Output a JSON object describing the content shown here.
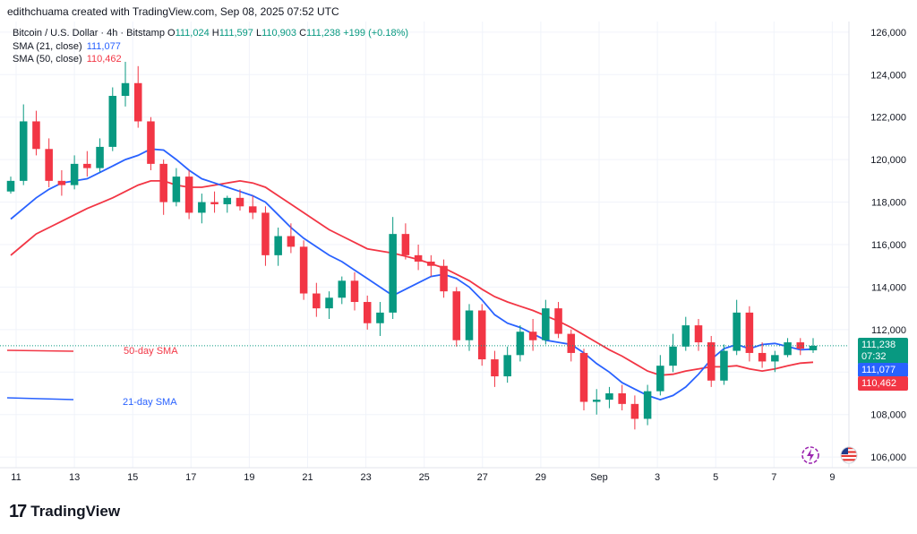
{
  "header": {
    "attribution": "edithchuama created with TradingView.com, Sep 08, 2025 07:52 UTC"
  },
  "legend": {
    "symbol": "Bitcoin / U.S. Dollar · 4h · Bitstamp",
    "o_label": "O",
    "o_value": "111,024",
    "h_label": "H",
    "h_value": "111,597",
    "l_label": "L",
    "l_value": "110,903",
    "c_label": "C",
    "c_value": "111,238",
    "change": "+199 (+0.18%)",
    "sma21_label": "SMA (21, close)",
    "sma21_value": "111,077",
    "sma50_label": "SMA (50, close)",
    "sma50_value": "110,462"
  },
  "price_tags": {
    "price": "111,238",
    "countdown": "07:32",
    "sma21": "111,077",
    "sma50": "110,462"
  },
  "branding": {
    "name": "TradingView",
    "mark": "17"
  },
  "colors": {
    "up": "#089981",
    "down": "#f23645",
    "sma21": "#2962ff",
    "sma50": "#f23645",
    "grid": "#f0f3fa",
    "text": "#131722"
  },
  "icons": [
    "lightning-icon",
    "us-flag-icon"
  ],
  "chart_data": {
    "type": "candlestick",
    "x_ticks": [
      "11",
      "13",
      "15",
      "17",
      "19",
      "21",
      "23",
      "25",
      "27",
      "29",
      "Sep",
      "3",
      "5",
      "7",
      "9"
    ],
    "y_ticks": [
      "126,000",
      "124,000",
      "122,000",
      "120,000",
      "118,000",
      "116,000",
      "114,000",
      "112,000",
      "110,000",
      "108,000",
      "106,000"
    ],
    "ylim": [
      105500,
      126500
    ],
    "annotations": [
      {
        "text": "50-day SMA",
        "color": "#f23645"
      },
      {
        "text": "21-day SMA",
        "color": "#2962ff"
      }
    ],
    "series": [
      {
        "name": "SMA (21, close)",
        "color": "#2962ff",
        "points": [
          [
            0,
            117200
          ],
          [
            1,
            117700
          ],
          [
            2,
            118200
          ],
          [
            3,
            118600
          ],
          [
            4,
            118900
          ],
          [
            5,
            119000
          ],
          [
            6,
            119100
          ],
          [
            7,
            119400
          ],
          [
            8,
            119700
          ],
          [
            9,
            120000
          ],
          [
            10,
            120200
          ],
          [
            11,
            120500
          ],
          [
            12,
            120450
          ],
          [
            13,
            120000
          ],
          [
            14,
            119500
          ],
          [
            15,
            119100
          ],
          [
            16,
            118900
          ],
          [
            17,
            118700
          ],
          [
            18,
            118500
          ],
          [
            19,
            118300
          ],
          [
            20,
            118000
          ],
          [
            21,
            117400
          ],
          [
            22,
            116800
          ],
          [
            23,
            116300
          ],
          [
            24,
            115900
          ],
          [
            25,
            115500
          ],
          [
            26,
            115200
          ],
          [
            27,
            114800
          ],
          [
            28,
            114400
          ],
          [
            29,
            114000
          ],
          [
            30,
            113600
          ],
          [
            31,
            113900
          ],
          [
            32,
            114200
          ],
          [
            33,
            114500
          ],
          [
            34,
            114600
          ],
          [
            35,
            114400
          ],
          [
            36,
            114000
          ],
          [
            37,
            113400
          ],
          [
            38,
            112700
          ],
          [
            39,
            112300
          ],
          [
            40,
            112100
          ],
          [
            41,
            111800
          ],
          [
            42,
            111500
          ],
          [
            43,
            111400
          ],
          [
            44,
            111300
          ],
          [
            45,
            110900
          ],
          [
            46,
            110400
          ],
          [
            47,
            110000
          ],
          [
            48,
            109500
          ],
          [
            49,
            109200
          ],
          [
            50,
            108900
          ],
          [
            51,
            108700
          ],
          [
            52,
            108900
          ],
          [
            53,
            109300
          ],
          [
            54,
            109900
          ],
          [
            55,
            110600
          ],
          [
            56,
            111100
          ],
          [
            57,
            111300
          ],
          [
            58,
            111100
          ],
          [
            59,
            111300
          ],
          [
            60,
            111350
          ],
          [
            61,
            111200
          ],
          [
            62,
            111050
          ],
          [
            63,
            111080
          ]
        ]
      },
      {
        "name": "SMA (50, close)",
        "color": "#f23645",
        "points": [
          [
            0,
            115500
          ],
          [
            1,
            116000
          ],
          [
            2,
            116500
          ],
          [
            3,
            116800
          ],
          [
            4,
            117100
          ],
          [
            5,
            117400
          ],
          [
            6,
            117700
          ],
          [
            7,
            117950
          ],
          [
            8,
            118200
          ],
          [
            9,
            118500
          ],
          [
            10,
            118800
          ],
          [
            11,
            119000
          ],
          [
            12,
            119000
          ],
          [
            13,
            118800
          ],
          [
            14,
            118700
          ],
          [
            15,
            118700
          ],
          [
            16,
            118800
          ],
          [
            17,
            118900
          ],
          [
            18,
            119000
          ],
          [
            19,
            118900
          ],
          [
            20,
            118700
          ],
          [
            21,
            118300
          ],
          [
            22,
            117900
          ],
          [
            23,
            117500
          ],
          [
            24,
            117100
          ],
          [
            25,
            116700
          ],
          [
            26,
            116400
          ],
          [
            27,
            116100
          ],
          [
            28,
            115800
          ],
          [
            29,
            115700
          ],
          [
            30,
            115600
          ],
          [
            31,
            115450
          ],
          [
            32,
            115300
          ],
          [
            33,
            115100
          ],
          [
            34,
            114900
          ],
          [
            35,
            114600
          ],
          [
            36,
            114300
          ],
          [
            37,
            113900
          ],
          [
            38,
            113550
          ],
          [
            39,
            113300
          ],
          [
            40,
            113100
          ],
          [
            41,
            112900
          ],
          [
            42,
            112650
          ],
          [
            43,
            112400
          ],
          [
            44,
            112100
          ],
          [
            45,
            111750
          ],
          [
            46,
            111400
          ],
          [
            47,
            111050
          ],
          [
            48,
            110750
          ],
          [
            49,
            110400
          ],
          [
            50,
            110050
          ],
          [
            51,
            109850
          ],
          [
            52,
            109900
          ],
          [
            53,
            110050
          ],
          [
            54,
            110150
          ],
          [
            55,
            110250
          ],
          [
            56,
            110250
          ],
          [
            57,
            110300
          ],
          [
            58,
            110150
          ],
          [
            59,
            110050
          ],
          [
            60,
            110150
          ],
          [
            61,
            110300
          ],
          [
            62,
            110420
          ],
          [
            63,
            110462
          ]
        ]
      }
    ],
    "candles": [
      [
        118500,
        119200,
        118400,
        119000
      ],
      [
        119000,
        122600,
        118800,
        121800
      ],
      [
        121800,
        122300,
        120200,
        120500
      ],
      [
        120500,
        121000,
        118700,
        119000
      ],
      [
        119000,
        119500,
        118300,
        118800
      ],
      [
        118800,
        120200,
        118600,
        119800
      ],
      [
        119800,
        120400,
        119200,
        119600
      ],
      [
        119600,
        121000,
        119400,
        120600
      ],
      [
        120600,
        123400,
        120400,
        123000
      ],
      [
        123000,
        124600,
        122500,
        123600
      ],
      [
        123600,
        124400,
        121500,
        121800
      ],
      [
        121800,
        122000,
        119500,
        119800
      ],
      [
        119800,
        120000,
        117400,
        118000
      ],
      [
        118000,
        119600,
        117800,
        119200
      ],
      [
        119200,
        119500,
        117200,
        117500
      ],
      [
        117500,
        118400,
        117000,
        118000
      ],
      [
        118000,
        118500,
        117500,
        117900
      ],
      [
        117900,
        118300,
        117500,
        118200
      ],
      [
        118200,
        118600,
        117600,
        117800
      ],
      [
        117800,
        118300,
        117200,
        117500
      ],
      [
        117500,
        117800,
        115000,
        115500
      ],
      [
        115500,
        116800,
        115000,
        116400
      ],
      [
        116400,
        117000,
        115600,
        115900
      ],
      [
        115900,
        116200,
        113400,
        113700
      ],
      [
        113700,
        114200,
        112600,
        113000
      ],
      [
        113000,
        113800,
        112500,
        113500
      ],
      [
        113500,
        114500,
        113200,
        114300
      ],
      [
        114300,
        114700,
        112900,
        113300
      ],
      [
        113300,
        113600,
        112000,
        112300
      ],
      [
        112300,
        113300,
        111700,
        112800
      ],
      [
        112800,
        117300,
        112500,
        116500
      ],
      [
        116500,
        117000,
        115300,
        115500
      ],
      [
        115500,
        116000,
        114800,
        115200
      ],
      [
        115200,
        115500,
        114500,
        115000
      ],
      [
        115000,
        115300,
        113500,
        113800
      ],
      [
        113800,
        114000,
        111200,
        111500
      ],
      [
        111500,
        113200,
        111000,
        112900
      ],
      [
        112900,
        113200,
        110300,
        110600
      ],
      [
        110600,
        111000,
        109300,
        109800
      ],
      [
        109800,
        111200,
        109500,
        110800
      ],
      [
        110800,
        112200,
        110500,
        111900
      ],
      [
        111900,
        112500,
        111000,
        111500
      ],
      [
        111500,
        113400,
        111300,
        113000
      ],
      [
        113000,
        113300,
        111600,
        111800
      ],
      [
        111800,
        112000,
        110500,
        110900
      ],
      [
        110900,
        111100,
        108200,
        108600
      ],
      [
        108600,
        109200,
        108000,
        108700
      ],
      [
        108700,
        109300,
        108300,
        109000
      ],
      [
        109000,
        109400,
        108200,
        108500
      ],
      [
        108500,
        108900,
        107300,
        107800
      ],
      [
        107800,
        109400,
        107500,
        109100
      ],
      [
        109100,
        110800,
        108900,
        110300
      ],
      [
        110300,
        111800,
        110000,
        111200
      ],
      [
        111200,
        112600,
        111000,
        112200
      ],
      [
        112200,
        112500,
        111000,
        111400
      ],
      [
        111400,
        111700,
        109300,
        109600
      ],
      [
        109600,
        111300,
        109400,
        111000
      ],
      [
        111000,
        113400,
        110800,
        112800
      ],
      [
        112800,
        113100,
        110500,
        110900
      ],
      [
        110900,
        111400,
        110200,
        110500
      ],
      [
        110500,
        111000,
        110000,
        110800
      ],
      [
        110800,
        111600,
        110700,
        111400
      ],
      [
        111400,
        111600,
        110800,
        111100
      ],
      [
        111024,
        111597,
        110903,
        111238
      ]
    ]
  }
}
